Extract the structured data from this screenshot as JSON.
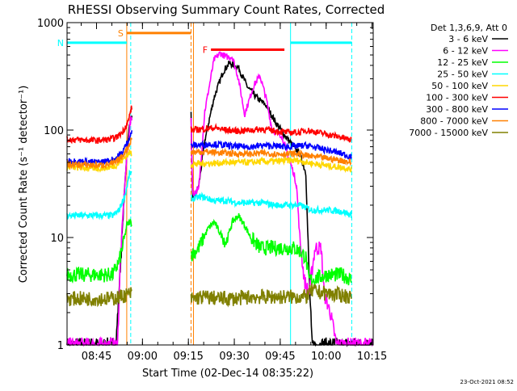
{
  "chart_data": {
    "type": "line",
    "title": "RHESSI Observing Summary Count Rates, Corrected",
    "xlabel": "Start Time (02-Dec-14 08:35:22)",
    "ylabel": "Corrected Count Rate (s⁻¹ detector⁻¹)",
    "x_unit": "minutes after 08:35:22",
    "xlim": [
      0,
      100
    ],
    "ylim": [
      1,
      1000
    ],
    "yscale": "log",
    "x_ticks": [
      {
        "x": 9.63,
        "label": "08:45"
      },
      {
        "x": 24.63,
        "label": "09:00"
      },
      {
        "x": 39.63,
        "label": "09:15"
      },
      {
        "x": 54.63,
        "label": "09:30"
      },
      {
        "x": 69.63,
        "label": "09:45"
      },
      {
        "x": 84.63,
        "label": "10:00"
      },
      {
        "x": 99.63,
        "label": "10:15"
      }
    ],
    "y_ticks": [
      {
        "y": 1,
        "label": "1"
      },
      {
        "y": 10,
        "label": "10"
      },
      {
        "y": 100,
        "label": "100"
      },
      {
        "y": 1000,
        "label": "1000"
      }
    ],
    "legend": {
      "header": "Det 1,3,6,9, Att 0",
      "position": "right"
    },
    "series": [
      {
        "name": "3 - 6 keV",
        "color": "#000000",
        "points": [
          [
            0,
            1
          ],
          [
            16,
            1
          ],
          [
            17.5,
            6
          ],
          [
            18.5,
            20
          ],
          [
            19.5,
            60
          ],
          [
            20.5,
            120
          ],
          [
            21.5,
            140
          ],
          [
            40.5,
            140
          ],
          [
            41,
            22
          ],
          [
            43,
            30
          ],
          [
            45,
            80
          ],
          [
            48,
            200
          ],
          [
            51,
            350
          ],
          [
            53,
            420
          ],
          [
            56,
            380
          ],
          [
            59,
            250
          ],
          [
            62,
            200
          ],
          [
            65,
            170
          ],
          [
            68,
            120
          ],
          [
            71,
            90
          ],
          [
            74,
            70
          ],
          [
            76,
            60
          ],
          [
            78,
            40
          ],
          [
            79,
            5
          ],
          [
            80,
            1
          ],
          [
            100,
            1
          ]
        ]
      },
      {
        "name": "6 - 12 keV",
        "color": "#ff00ff",
        "points": [
          [
            0,
            1
          ],
          [
            16.5,
            1
          ],
          [
            17.5,
            7
          ],
          [
            18.5,
            22
          ],
          [
            19.5,
            55
          ],
          [
            20.5,
            110
          ],
          [
            21,
            130
          ],
          [
            40.5,
            130
          ],
          [
            41,
            25
          ],
          [
            43,
            28
          ],
          [
            45,
            150
          ],
          [
            48,
            450
          ],
          [
            50,
            520
          ],
          [
            52,
            480
          ],
          [
            54,
            480
          ],
          [
            56,
            300
          ],
          [
            58,
            140
          ],
          [
            61,
            260
          ],
          [
            63,
            320
          ],
          [
            65,
            200
          ],
          [
            67,
            100
          ],
          [
            70,
            90
          ],
          [
            72,
            60
          ],
          [
            74,
            40
          ],
          [
            75,
            30
          ],
          [
            76,
            10
          ],
          [
            77.5,
            4
          ],
          [
            79,
            3
          ],
          [
            81,
            8
          ],
          [
            83,
            8
          ],
          [
            84,
            3
          ],
          [
            86,
            2
          ],
          [
            88,
            1
          ],
          [
            100,
            1
          ]
        ]
      },
      {
        "name": "12 - 25 keV",
        "color": "#00ff00",
        "points": [
          [
            0,
            4.5
          ],
          [
            15,
            4.5
          ],
          [
            17,
            6
          ],
          [
            18.5,
            9
          ],
          [
            19.5,
            13
          ],
          [
            20.5,
            14
          ],
          [
            41,
            7
          ],
          [
            43,
            8
          ],
          [
            46,
            12
          ],
          [
            48,
            14
          ],
          [
            50,
            11
          ],
          [
            52,
            9
          ],
          [
            54,
            14
          ],
          [
            56,
            16
          ],
          [
            58,
            13
          ],
          [
            60,
            10
          ],
          [
            63,
            8
          ],
          [
            66,
            8
          ],
          [
            70,
            8
          ],
          [
            74,
            8
          ],
          [
            76,
            7.5
          ],
          [
            78,
            6.5
          ],
          [
            79,
            4
          ],
          [
            85,
            4.5
          ],
          [
            90,
            4.5
          ],
          [
            93,
            4
          ]
        ]
      },
      {
        "name": "25 - 50 keV",
        "color": "#00ffff",
        "points": [
          [
            0,
            16
          ],
          [
            15,
            16
          ],
          [
            17,
            18
          ],
          [
            19,
            25
          ],
          [
            20.5,
            40
          ],
          [
            41,
            23
          ],
          [
            44,
            24
          ],
          [
            48,
            22
          ],
          [
            52,
            22
          ],
          [
            56,
            21
          ],
          [
            60,
            21
          ],
          [
            64,
            21
          ],
          [
            68,
            20
          ],
          [
            72,
            20
          ],
          [
            76,
            20
          ],
          [
            78,
            19
          ],
          [
            80,
            18
          ],
          [
            85,
            18
          ],
          [
            90,
            17.5
          ],
          [
            93,
            16
          ]
        ]
      },
      {
        "name": "50 - 100 keV",
        "color": "#ffd700",
        "points": [
          [
            0,
            45
          ],
          [
            10,
            44
          ],
          [
            14,
            45
          ],
          [
            16,
            47
          ],
          [
            18,
            52
          ],
          [
            20.5,
            62
          ],
          [
            41,
            48
          ],
          [
            44,
            49
          ],
          [
            48,
            49
          ],
          [
            52,
            50
          ],
          [
            56,
            50
          ],
          [
            60,
            50
          ],
          [
            64,
            51
          ],
          [
            68,
            51
          ],
          [
            72,
            52
          ],
          [
            76,
            52
          ],
          [
            78,
            50
          ],
          [
            82,
            48
          ],
          [
            86,
            46
          ],
          [
            90,
            45
          ],
          [
            93,
            43
          ]
        ]
      },
      {
        "name": "100 - 300 keV",
        "color": "#ff0000",
        "points": [
          [
            0,
            82
          ],
          [
            10,
            80
          ],
          [
            14,
            82
          ],
          [
            16,
            85
          ],
          [
            18,
            95
          ],
          [
            20,
            120
          ],
          [
            21,
            160
          ],
          [
            41,
            100
          ],
          [
            44,
            102
          ],
          [
            48,
            105
          ],
          [
            52,
            100
          ],
          [
            56,
            98
          ],
          [
            60,
            100
          ],
          [
            64,
            102
          ],
          [
            68,
            98
          ],
          [
            72,
            95
          ],
          [
            76,
            95
          ],
          [
            78,
            100
          ],
          [
            82,
            95
          ],
          [
            86,
            90
          ],
          [
            90,
            85
          ],
          [
            93,
            80
          ]
        ]
      },
      {
        "name": "300 - 800 keV",
        "color": "#0000ff",
        "points": [
          [
            0,
            52
          ],
          [
            10,
            50
          ],
          [
            14,
            52
          ],
          [
            16,
            55
          ],
          [
            18,
            62
          ],
          [
            20,
            80
          ],
          [
            21,
            95
          ],
          [
            41,
            72
          ],
          [
            44,
            73
          ],
          [
            48,
            74
          ],
          [
            52,
            72
          ],
          [
            56,
            70
          ],
          [
            60,
            70
          ],
          [
            64,
            72
          ],
          [
            68,
            71
          ],
          [
            72,
            70
          ],
          [
            76,
            71
          ],
          [
            78,
            72
          ],
          [
            82,
            68
          ],
          [
            86,
            64
          ],
          [
            90,
            60
          ],
          [
            93,
            56
          ]
        ]
      },
      {
        "name": "800 - 7000 keV",
        "color": "#ff8000",
        "points": [
          [
            0,
            48
          ],
          [
            10,
            47
          ],
          [
            14,
            48
          ],
          [
            16,
            50
          ],
          [
            18,
            57
          ],
          [
            20,
            70
          ],
          [
            21,
            82
          ],
          [
            41,
            62
          ],
          [
            44,
            63
          ],
          [
            48,
            62
          ],
          [
            52,
            61
          ],
          [
            56,
            60
          ],
          [
            60,
            60
          ],
          [
            64,
            61
          ],
          [
            68,
            60
          ],
          [
            72,
            60
          ],
          [
            76,
            60
          ],
          [
            78,
            58
          ],
          [
            82,
            56
          ],
          [
            86,
            54
          ],
          [
            90,
            52
          ],
          [
            93,
            50
          ]
        ]
      },
      {
        "name": "7000 - 15000 keV",
        "color": "#808000",
        "points": [
          [
            0,
            2.7
          ],
          [
            15,
            2.7
          ],
          [
            17,
            2.8
          ],
          [
            19,
            2.9
          ],
          [
            20.5,
            3
          ],
          [
            41,
            2.7
          ],
          [
            45,
            2.8
          ],
          [
            50,
            2.7
          ],
          [
            55,
            2.7
          ],
          [
            60,
            2.8
          ],
          [
            65,
            2.8
          ],
          [
            70,
            2.8
          ],
          [
            75,
            2.8
          ],
          [
            78,
            2.8
          ],
          [
            80,
            3.2
          ],
          [
            85,
            3
          ],
          [
            90,
            2.9
          ],
          [
            93,
            2.8
          ]
        ]
      }
    ],
    "annotations": {
      "attenuator_bars": [
        {
          "label": "S",
          "x_start": 19.5,
          "x_end": 40.5,
          "y": 800,
          "color": "#ff8000"
        },
        {
          "label": "N",
          "x_start": 0,
          "x_end": 19.5,
          "y": 650,
          "color": "#00ffff"
        },
        {
          "label": "F",
          "x_start": 47,
          "x_end": 71,
          "y": 560,
          "color": "#ff0000"
        },
        {
          "label": "",
          "x_start": 73,
          "x_end": 93,
          "y": 650,
          "color": "#00ffff"
        }
      ],
      "vlines": [
        {
          "x": 19.5,
          "color": "#ff8000",
          "dashed": false
        },
        {
          "x": 20.8,
          "color": "#00ffff",
          "dashed": true
        },
        {
          "x": 40.5,
          "color": "#ff8000",
          "dashed": true
        },
        {
          "x": 41.3,
          "color": "#ff8000",
          "dashed": false
        },
        {
          "x": 73.0,
          "color": "#00ffff",
          "dashed": false
        },
        {
          "x": 93.0,
          "color": "#00ffff",
          "dashed": true
        }
      ]
    }
  },
  "footer": {
    "date_stamp": "23-Oct-2021 08:52"
  }
}
